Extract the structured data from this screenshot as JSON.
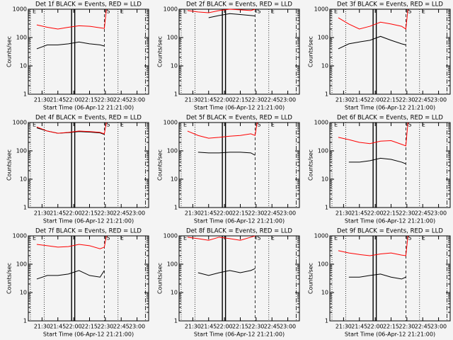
{
  "chart_data": [
    {
      "type": "line",
      "title": "Det 1f BLACK = Events, RED = LLD",
      "x_label": "Start Time (06-Apr-12 21:21:00)",
      "y_label": "Counts/sec",
      "x": [
        "21:25",
        "21:35",
        "21:45",
        "21:55",
        "22:05",
        "22:15",
        "22:25",
        "22:29",
        "22:31"
      ],
      "series": [
        {
          "color": "#000000",
          "values": [
            40,
            55,
            55,
            60,
            70,
            60,
            55,
            50,
            null
          ]
        },
        {
          "color": "#ff0000",
          "values": [
            280,
            230,
            200,
            230,
            260,
            250,
            220,
            210,
            1000
          ]
        }
      ],
      "xlim": [
        "21:17",
        "23:11"
      ],
      "ylim": [
        1,
        1000
      ],
      "log_y": true,
      "xticks": [
        "21:30",
        "21:45",
        "22:00",
        "22:15",
        "22:30",
        "22:45",
        "23:00"
      ],
      "yticks": [
        1,
        10,
        100,
        1000
      ],
      "markers": [
        {
          "x": "21:19",
          "style": "dotted",
          "label": "E"
        },
        {
          "x": "21:32",
          "style": "dotted"
        },
        {
          "x": "21:58",
          "style": "solid"
        },
        {
          "x": "22:01",
          "style": "solid"
        },
        {
          "x": "22:29",
          "style": "dashed",
          "label": "S"
        },
        {
          "x": "22:42",
          "style": "dotted",
          "label": "E"
        },
        {
          "x": "23:08",
          "style": "dashdot"
        }
      ]
    },
    {
      "type": "line",
      "title": "Det 2f BLACK = Events, RED = LLD",
      "x_label": "Start Time (06-Apr-12 21:21:00)",
      "y_label": "Counts/sec",
      "x": [
        "21:25",
        "21:35",
        "21:45",
        "21:55",
        "22:05",
        "22:15",
        "22:25",
        "22:29",
        "22:31"
      ],
      "series": [
        {
          "color": "#000000",
          "values": [
            null,
            null,
            500,
            600,
            700,
            650,
            600,
            580,
            null
          ]
        },
        {
          "color": "#ff0000",
          "values": [
            900,
            800,
            750,
            900,
            1000,
            950,
            900,
            1000,
            null
          ]
        }
      ],
      "xlim": [
        "21:17",
        "23:11"
      ],
      "ylim": [
        1,
        1000
      ],
      "log_y": true,
      "xticks": [
        "21:30",
        "21:45",
        "22:00",
        "22:15",
        "22:30",
        "22:45",
        "23:00"
      ],
      "yticks": [
        1,
        10,
        100,
        1000
      ],
      "markers": [
        {
          "x": "21:19",
          "style": "dotted",
          "label": "E"
        },
        {
          "x": "21:32",
          "style": "dotted"
        },
        {
          "x": "21:58",
          "style": "solid"
        },
        {
          "x": "22:01",
          "style": "solid"
        },
        {
          "x": "22:29",
          "style": "dashed",
          "label": "S"
        },
        {
          "x": "22:42",
          "style": "dotted",
          "label": "E"
        },
        {
          "x": "23:08",
          "style": "dashdot"
        }
      ]
    },
    {
      "type": "line",
      "title": "Det 3f BLACK = Events, RED = LLD",
      "x_label": "Start Time (06-Apr-12 21:21:00)",
      "y_label": "Counts/sec",
      "x": [
        "21:25",
        "21:35",
        "21:45",
        "21:55",
        "22:05",
        "22:15",
        "22:25",
        "22:29",
        "22:31"
      ],
      "series": [
        {
          "color": "#000000",
          "values": [
            40,
            60,
            70,
            80,
            110,
            80,
            60,
            55,
            null
          ]
        },
        {
          "color": "#ff0000",
          "values": [
            500,
            300,
            200,
            250,
            350,
            300,
            250,
            200,
            1000
          ]
        }
      ],
      "xlim": [
        "21:17",
        "23:11"
      ],
      "ylim": [
        1,
        1000
      ],
      "log_y": true,
      "xticks": [
        "21:30",
        "21:45",
        "22:00",
        "22:15",
        "22:30",
        "22:45",
        "23:00"
      ],
      "yticks": [
        1,
        10,
        100,
        1000
      ],
      "markers": [
        {
          "x": "21:19",
          "style": "dotted",
          "label": "E"
        },
        {
          "x": "21:32",
          "style": "dotted"
        },
        {
          "x": "21:58",
          "style": "solid"
        },
        {
          "x": "22:01",
          "style": "solid"
        },
        {
          "x": "22:29",
          "style": "dashed",
          "label": "S"
        },
        {
          "x": "22:42",
          "style": "dotted",
          "label": "E"
        },
        {
          "x": "23:08",
          "style": "dashdot"
        }
      ]
    },
    {
      "type": "line",
      "title": "Det 4f BLACK = Events, RED = LLD",
      "x_label": "Start Time (06-Apr-12 21:21:00)",
      "y_label": "Counts/sec",
      "x": [
        "21:25",
        "21:35",
        "21:45",
        "21:55",
        "22:05",
        "22:15",
        "22:25",
        "22:29",
        "22:31"
      ],
      "series": [
        {
          "color": "#000000",
          "values": [
            650,
            500,
            420,
            440,
            480,
            460,
            430,
            380,
            null
          ]
        },
        {
          "color": "#ff0000",
          "values": [
            700,
            500,
            420,
            450,
            500,
            480,
            450,
            400,
            1000
          ]
        }
      ],
      "xlim": [
        "21:17",
        "23:11"
      ],
      "ylim": [
        1,
        1000
      ],
      "log_y": true,
      "xticks": [
        "21:30",
        "21:45",
        "22:00",
        "22:15",
        "22:30",
        "22:45",
        "23:00"
      ],
      "yticks": [
        1,
        10,
        100,
        1000
      ],
      "markers": [
        {
          "x": "21:19",
          "style": "dotted",
          "label": "E"
        },
        {
          "x": "21:32",
          "style": "dotted"
        },
        {
          "x": "21:58",
          "style": "solid"
        },
        {
          "x": "22:01",
          "style": "solid"
        },
        {
          "x": "22:29",
          "style": "dashed",
          "label": "S"
        },
        {
          "x": "22:42",
          "style": "dotted",
          "label": "E"
        },
        {
          "x": "23:08",
          "style": "dashdot"
        }
      ]
    },
    {
      "type": "line",
      "title": "Det 5f BLACK = Events, RED = LLD",
      "x_label": "Start Time (06-Apr-12 21:21:00)",
      "y_label": "Counts/sec",
      "x": [
        "21:25",
        "21:35",
        "21:45",
        "21:55",
        "22:05",
        "22:15",
        "22:25",
        "22:29",
        "22:31"
      ],
      "series": [
        {
          "color": "#000000",
          "values": [
            null,
            90,
            85,
            85,
            90,
            90,
            85,
            70,
            null
          ]
        },
        {
          "color": "#ff0000",
          "values": [
            500,
            350,
            280,
            300,
            330,
            350,
            400,
            350,
            1000
          ]
        }
      ],
      "xlim": [
        "21:17",
        "23:11"
      ],
      "ylim": [
        1,
        1000
      ],
      "log_y": true,
      "xticks": [
        "21:30",
        "21:45",
        "22:00",
        "22:15",
        "22:30",
        "22:45",
        "23:00"
      ],
      "yticks": [
        1,
        10,
        100,
        1000
      ],
      "markers": [
        {
          "x": "21:19",
          "style": "dotted",
          "label": "E"
        },
        {
          "x": "21:32",
          "style": "dotted"
        },
        {
          "x": "21:58",
          "style": "solid"
        },
        {
          "x": "22:01",
          "style": "solid"
        },
        {
          "x": "22:29",
          "style": "dashed",
          "label": "S"
        },
        {
          "x": "22:42",
          "style": "dotted",
          "label": "E"
        },
        {
          "x": "23:08",
          "style": "dashdot"
        }
      ]
    },
    {
      "type": "line",
      "title": "Det 6f BLACK = Events, RED = LLD",
      "x_label": "Start Time (06-Apr-12 21:21:00)",
      "y_label": "Counts/sec",
      "x": [
        "21:25",
        "21:35",
        "21:45",
        "21:55",
        "22:05",
        "22:15",
        "22:25",
        "22:29",
        "22:31"
      ],
      "series": [
        {
          "color": "#000000",
          "values": [
            null,
            40,
            40,
            45,
            55,
            50,
            40,
            35,
            null
          ]
        },
        {
          "color": "#ff0000",
          "values": [
            300,
            250,
            200,
            180,
            220,
            230,
            170,
            150,
            1000
          ]
        }
      ],
      "xlim": [
        "21:17",
        "23:11"
      ],
      "ylim": [
        1,
        1000
      ],
      "log_y": true,
      "xticks": [
        "21:30",
        "21:45",
        "22:00",
        "22:15",
        "22:30",
        "22:45",
        "23:00"
      ],
      "yticks": [
        1,
        10,
        100,
        1000
      ],
      "markers": [
        {
          "x": "21:19",
          "style": "dotted",
          "label": "E"
        },
        {
          "x": "21:32",
          "style": "dotted"
        },
        {
          "x": "21:58",
          "style": "solid"
        },
        {
          "x": "22:01",
          "style": "solid"
        },
        {
          "x": "22:29",
          "style": "dashed",
          "label": "S"
        },
        {
          "x": "22:42",
          "style": "dotted",
          "label": "E"
        },
        {
          "x": "23:08",
          "style": "dashdot"
        }
      ]
    },
    {
      "type": "line",
      "title": "Det 7f BLACK = Events, RED = LLD",
      "x_label": "Start Time (06-Apr-12 21:21:00)",
      "y_label": "Counts/sec",
      "x": [
        "21:25",
        "21:35",
        "21:45",
        "21:55",
        "22:05",
        "22:15",
        "22:25",
        "22:29",
        "22:31"
      ],
      "series": [
        {
          "color": "#000000",
          "values": [
            30,
            40,
            40,
            45,
            60,
            40,
            35,
            60,
            null
          ]
        },
        {
          "color": "#ff0000",
          "values": [
            500,
            450,
            400,
            420,
            500,
            450,
            350,
            400,
            1000
          ]
        }
      ],
      "xlim": [
        "21:17",
        "23:11"
      ],
      "ylim": [
        1,
        1000
      ],
      "log_y": true,
      "xticks": [
        "21:30",
        "21:45",
        "22:00",
        "22:15",
        "22:30",
        "22:45",
        "23:00"
      ],
      "yticks": [
        1,
        10,
        100,
        1000
      ],
      "markers": [
        {
          "x": "21:19",
          "style": "dotted",
          "label": "E"
        },
        {
          "x": "21:32",
          "style": "dotted"
        },
        {
          "x": "21:58",
          "style": "solid"
        },
        {
          "x": "22:01",
          "style": "solid"
        },
        {
          "x": "22:29",
          "style": "dashed",
          "label": "S"
        },
        {
          "x": "22:42",
          "style": "dotted",
          "label": "E"
        },
        {
          "x": "23:08",
          "style": "dashdot"
        }
      ]
    },
    {
      "type": "line",
      "title": "Det 8f BLACK = Events, RED = LLD",
      "x_label": "Start Time (06-Apr-12 21:21:00)",
      "y_label": "Counts/sec",
      "x": [
        "21:25",
        "21:35",
        "21:45",
        "21:55",
        "22:05",
        "22:15",
        "22:25",
        "22:29",
        "22:31"
      ],
      "series": [
        {
          "color": "#000000",
          "values": [
            null,
            50,
            40,
            50,
            60,
            50,
            60,
            70,
            null
          ]
        },
        {
          "color": "#ff0000",
          "values": [
            900,
            800,
            700,
            900,
            800,
            700,
            900,
            1000,
            null
          ]
        }
      ],
      "xlim": [
        "21:17",
        "23:11"
      ],
      "ylim": [
        1,
        1000
      ],
      "log_y": true,
      "xticks": [
        "21:30",
        "21:45",
        "22:00",
        "22:15",
        "22:30",
        "22:45",
        "23:00"
      ],
      "yticks": [
        1,
        10,
        100,
        1000
      ],
      "markers": [
        {
          "x": "21:19",
          "style": "dotted",
          "label": "E"
        },
        {
          "x": "21:32",
          "style": "dotted"
        },
        {
          "x": "21:58",
          "style": "solid"
        },
        {
          "x": "22:01",
          "style": "solid"
        },
        {
          "x": "22:29",
          "style": "dashed",
          "label": "S"
        },
        {
          "x": "22:42",
          "style": "dotted",
          "label": "E"
        },
        {
          "x": "23:08",
          "style": "dashdot"
        }
      ]
    },
    {
      "type": "line",
      "title": "Det 9f BLACK = Events, RED = LLD",
      "x_label": "Start Time (06-Apr-12 21:21:00)",
      "y_label": "Counts/sec",
      "x": [
        "21:25",
        "21:35",
        "21:45",
        "21:55",
        "22:05",
        "22:15",
        "22:25",
        "22:29",
        "22:31"
      ],
      "series": [
        {
          "color": "#000000",
          "values": [
            null,
            35,
            35,
            40,
            45,
            35,
            30,
            35,
            null
          ]
        },
        {
          "color": "#ff0000",
          "values": [
            300,
            250,
            220,
            200,
            230,
            250,
            210,
            200,
            1000
          ]
        }
      ],
      "xlim": [
        "21:17",
        "23:11"
      ],
      "ylim": [
        1,
        1000
      ],
      "log_y": true,
      "xticks": [
        "21:30",
        "21:45",
        "22:00",
        "22:15",
        "22:30",
        "22:45",
        "23:00"
      ],
      "yticks": [
        1,
        10,
        100,
        1000
      ],
      "markers": [
        {
          "x": "21:19",
          "style": "dotted",
          "label": "E"
        },
        {
          "x": "21:32",
          "style": "dotted"
        },
        {
          "x": "21:58",
          "style": "solid"
        },
        {
          "x": "22:01",
          "style": "solid"
        },
        {
          "x": "22:29",
          "style": "dashed",
          "label": "S"
        },
        {
          "x": "22:42",
          "style": "dotted",
          "label": "E"
        },
        {
          "x": "23:08",
          "style": "dashdot"
        }
      ]
    }
  ]
}
